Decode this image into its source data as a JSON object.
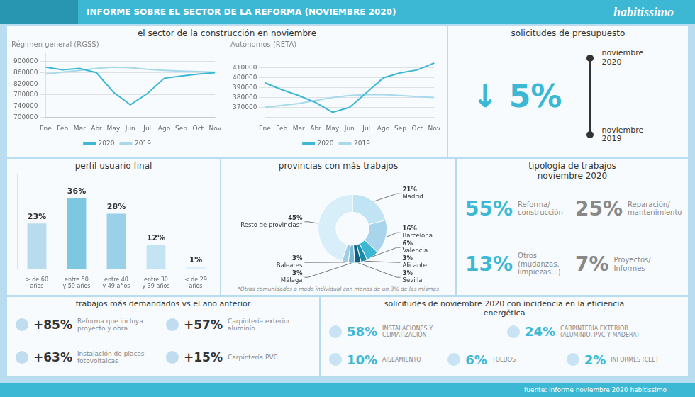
{
  "title": "INFORME SOBRE EL SECTOR DE LA REFORMA (NOVIEMBRE 2020)",
  "annotations": [
    "habitissimo",
    "fuente: informe noviembre 2020 habitissimo"
  ],
  "chart_data": [
    {
      "type": "text",
      "title": "el sector de la construcción en noviembre"
    },
    {
      "type": "line",
      "title": "Régimen general (RGSS)",
      "categories": [
        "Ene",
        "Feb",
        "Mar",
        "Abr",
        "May",
        "Jun",
        "Jul",
        "Ago",
        "Sep",
        "Oct",
        "Nov"
      ],
      "series": [
        {
          "name": "2020",
          "color": "#3db8d4",
          "values": [
            880000,
            870000,
            875000,
            860000,
            790000,
            745000,
            785000,
            840000,
            848000,
            855000,
            860000
          ]
        },
        {
          "name": "2019",
          "color": "#a8d8ea",
          "values": [
            855000,
            862000,
            868000,
            875000,
            880000,
            878000,
            872000,
            868000,
            866000,
            864000,
            862000
          ]
        }
      ],
      "ylim": [
        700000,
        930000
      ],
      "yticks": [
        700000,
        740000,
        780000,
        820000,
        860000,
        900000
      ],
      "grid": true,
      "legend": "bottom"
    },
    {
      "type": "line",
      "title": "Autónomos (RETA)",
      "categories": [
        "Ene",
        "Feb",
        "Mar",
        "Abr",
        "May",
        "Jun",
        "Jul",
        "Ago",
        "Sep",
        "Oct",
        "Nov"
      ],
      "series": [
        {
          "name": "2020",
          "color": "#3db8d4",
          "values": [
            395000,
            388000,
            382000,
            375000,
            365000,
            370000,
            385000,
            400000,
            405000,
            408000,
            415000
          ]
        },
        {
          "name": "2019",
          "color": "#a8d8ea",
          "values": [
            370000,
            372000,
            374000,
            377000,
            380000,
            382000,
            383000,
            383000,
            382000,
            381000,
            380000
          ]
        }
      ],
      "ylim": [
        360000,
        425000
      ],
      "yticks": [
        370000,
        380000,
        390000,
        400000,
        410000
      ],
      "grid": true,
      "legend": "bottom"
    },
    {
      "type": "text",
      "title": "solicitudes de presupuesto",
      "color": "#3db8d4",
      "annotations": [
        "↓ 5%",
        "noviembre\n2020",
        "noviembre\n2019"
      ]
    },
    {
      "type": "bar",
      "title": "perfil usuario final",
      "categories": [
        "> de 60\naños",
        "entre 50\ny 59 años",
        "entre 40\ny 49 años",
        "entre 30\ny 39 años",
        "< de 29\naños"
      ],
      "values": [
        23,
        36,
        28,
        12,
        1
      ],
      "value_labels": [
        "23%",
        "36%",
        "28%",
        "12%",
        "1%"
      ],
      "colors": [
        "#b8dcee",
        "#7dc8e0",
        "#9ad0e8",
        "#c4e4f4",
        "#daf0fc"
      ],
      "ylim": [
        0,
        48
      ],
      "data_labels": true,
      "tick_labels": "x"
    },
    {
      "type": "donut",
      "title": "provincias con más trabajos",
      "categories": [
        "Madrid",
        "Barcelona",
        "Valencia",
        "Alicante",
        "Sevilla",
        "Málaga",
        "Baleares",
        "Resto de provincias*"
      ],
      "values": [
        21,
        16,
        6,
        3,
        3,
        3,
        3,
        45
      ],
      "value_labels": [
        "21%",
        "16%",
        "6%",
        "3%",
        "3%",
        "3%",
        "3%",
        "45%"
      ],
      "colors": [
        "#c0e4f4",
        "#a8d4ec",
        "#3db8d4",
        "#1a8aaa",
        "#0d6080",
        "#7abcd8",
        "#a0cce4",
        "#d8eef8"
      ],
      "data_labels": true,
      "annotations": [
        "*Otras comunidades a modo individual con menos de un 3% de las mismas"
      ]
    },
    {
      "type": "stats",
      "title": "tipología de trabajos\nnoviembre 2020",
      "categories": [
        "Reforma/\nconstrucción",
        "Reparación/\nmantenimiento",
        "Otros\n(mudanzas,\nlimpiezas...)",
        "Proyectos/\nInformes"
      ],
      "values": [
        55,
        25,
        13,
        7
      ],
      "value_labels": [
        "55%",
        "25%",
        "13%",
        "7%"
      ],
      "colors": [
        "#3db8d4",
        "#888888",
        "#3db8d4",
        "#888888"
      ],
      "data_labels": true
    },
    {
      "type": "stats",
      "title": "trabajos más demandados vs el año anterior",
      "categories": [
        "Reforma que incluya\nproyecto y obra",
        "Carpintería exterior\naluminio",
        "Instalación de placas\nfotovoltaicas",
        "Carpintería PVC"
      ],
      "values": [
        85,
        57,
        63,
        15
      ],
      "value_labels": [
        "+85%",
        "+57%",
        "+63%",
        "+15%"
      ],
      "data_labels": true
    },
    {
      "type": "stats",
      "title": "solicitudes de noviembre 2020 con incidencia en la eficiencia\nenergética",
      "categories": [
        "INSTALACIONES Y\nCLIMATIZACIÓN",
        "CARPINTERÍA EXTERIOR\n(ALUMINIO, PVC Y MADERA)",
        "AISLAMIENTO",
        "TOLDOS",
        "INFORMES (CEE)"
      ],
      "values": [
        58,
        24,
        10,
        6,
        2
      ],
      "value_labels": [
        "58%",
        "24%",
        "10%",
        "6%",
        "2%"
      ],
      "color": "#3db8d4",
      "data_labels": true
    }
  ]
}
